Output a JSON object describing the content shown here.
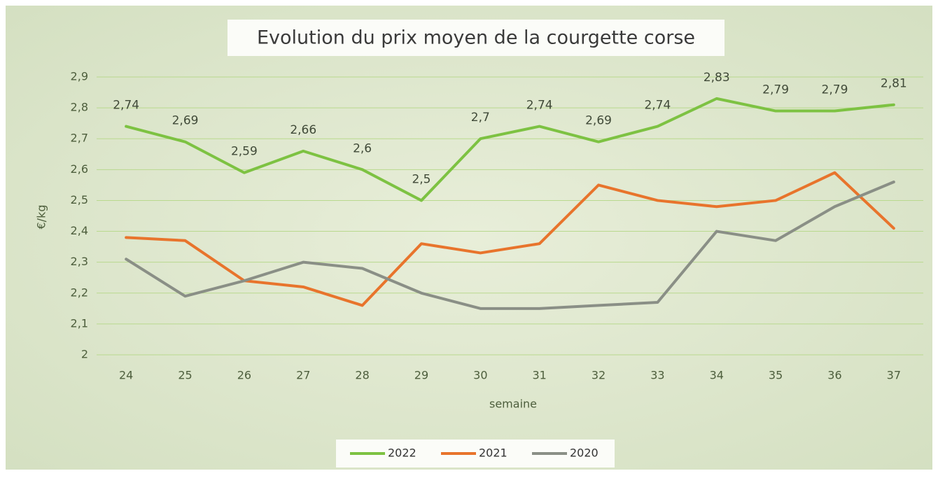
{
  "chart_data": {
    "type": "line",
    "title": "Evolution du prix moyen de la courgette corse",
    "x_label": "semaine",
    "y_label": "€/kg",
    "categories": [
      "24",
      "25",
      "26",
      "27",
      "28",
      "29",
      "30",
      "31",
      "32",
      "33",
      "34",
      "35",
      "36",
      "37"
    ],
    "series": [
      {
        "name": "2022",
        "color": "#7dc242",
        "values": [
          2.74,
          2.69,
          2.59,
          2.66,
          2.6,
          2.5,
          2.7,
          2.74,
          2.69,
          2.74,
          2.83,
          2.79,
          2.79,
          2.81
        ],
        "value_labels": [
          "2,74",
          "2,69",
          "2,59",
          "2,66",
          "2,6",
          "2,5",
          "2,7",
          "2,74",
          "2,69",
          "2,74",
          "2,83",
          "2,79",
          "2,79",
          "2,81"
        ]
      },
      {
        "name": "2021",
        "color": "#e8742c",
        "values": [
          2.38,
          2.37,
          2.24,
          2.22,
          2.16,
          2.36,
          2.33,
          2.36,
          2.55,
          2.5,
          2.48,
          2.5,
          2.59,
          2.41
        ]
      },
      {
        "name": "2020",
        "color": "#8a8f86",
        "values": [
          2.31,
          2.19,
          2.24,
          2.3,
          2.28,
          2.2,
          2.15,
          2.15,
          2.16,
          2.17,
          2.4,
          2.37,
          2.48,
          2.56
        ]
      }
    ],
    "ylim": [
      2,
      2.9
    ],
    "yticks": [
      2,
      {
        "value": 2.1,
        "label": "2,1"
      },
      {
        "value": 2.2,
        "label": "2,2"
      },
      {
        "value": 2.3,
        "label": "2,3"
      },
      {
        "value": 2.4,
        "label": "2,4"
      },
      {
        "value": 2.5,
        "label": "2,5"
      },
      {
        "value": 2.6,
        "label": "2,6"
      },
      {
        "value": 2.7,
        "label": "2,7"
      },
      {
        "value": 2.8,
        "label": "2,8"
      },
      {
        "value": 2.9,
        "label": "2,9"
      }
    ],
    "grid": true,
    "legend": "bottom"
  }
}
